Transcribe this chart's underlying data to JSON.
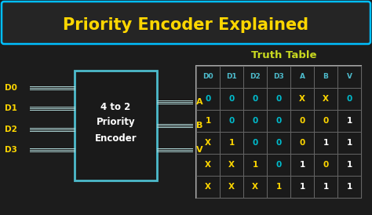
{
  "title": "Priority Encoder Explained",
  "bg_color": "#1c1c1c",
  "title_color": "#FFD700",
  "title_border_color": "#00BFFF",
  "title_bg_color": "#252525",
  "box_label": "4 to 2\nPriority\nEncoder",
  "box_border_color": "#4DBBCC",
  "box_fill_color": "#1a1a1a",
  "inputs": [
    "D0",
    "D1",
    "D2",
    "D3"
  ],
  "outputs": [
    "A",
    "B",
    "V"
  ],
  "wire_color": "#B0D8D8",
  "input_label_color": "#FFD700",
  "output_label_color": "#FFD700",
  "truth_table_title": "Truth Table",
  "truth_table_title_color": "#C8D820",
  "truth_table_border_color": "#AAAAAA",
  "truth_table_bg": "#1a1a1a",
  "truth_table_cell_border": "#666666",
  "headers": [
    "D0",
    "D1",
    "D2",
    "D3",
    "A",
    "B",
    "V"
  ],
  "header_color": "#4DBBCC",
  "rows": [
    [
      "0",
      "0",
      "0",
      "0",
      "X",
      "X",
      "0"
    ],
    [
      "1",
      "0",
      "0",
      "0",
      "0",
      "0",
      "1"
    ],
    [
      "X",
      "1",
      "0",
      "0",
      "0",
      "1",
      "1"
    ],
    [
      "X",
      "X",
      "1",
      "0",
      "1",
      "0",
      "1"
    ],
    [
      "X",
      "X",
      "X",
      "1",
      "1",
      "1",
      "1"
    ]
  ],
  "row_col_colors": [
    [
      "#00BBCC",
      "#00BBCC",
      "#00BBCC",
      "#00BBCC",
      "#FFD700",
      "#FFD700",
      "#00BBCC"
    ],
    [
      "#FFD700",
      "#00BBCC",
      "#00BBCC",
      "#00BBCC",
      "#FFD700",
      "#FFD700",
      "#FFFFFF"
    ],
    [
      "#FFD700",
      "#FFD700",
      "#00BBCC",
      "#00BBCC",
      "#FFD700",
      "#FFFFFF",
      "#FFFFFF"
    ],
    [
      "#FFD700",
      "#FFD700",
      "#FFD700",
      "#00BBCC",
      "#FFFFFF",
      "#FFD700",
      "#FFFFFF"
    ],
    [
      "#FFD700",
      "#FFD700",
      "#FFD700",
      "#FFD700",
      "#FFFFFF",
      "#FFFFFF",
      "#FFFFFF"
    ]
  ]
}
